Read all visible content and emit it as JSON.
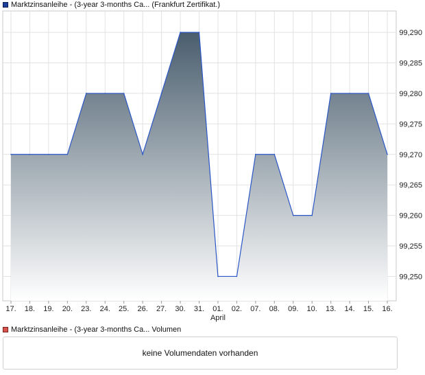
{
  "legend": {
    "price_series_label": "Marktzinsanleihe - (3-year 3-months Ca... (Frankfurt Zertifikat.)",
    "volume_series_label": "Marktzinsanleihe - (3-year 3-months Ca... Volumen",
    "price_color": "#1c3f9a",
    "volume_color": "#d9534f"
  },
  "volume_panel": {
    "message": "keine Volumendaten vorhanden"
  },
  "chart_data": {
    "type": "area",
    "x": [
      "17.",
      "18.",
      "19.",
      "20.",
      "23.",
      "24.",
      "25.",
      "26.",
      "27.",
      "30.",
      "31.",
      "01.",
      "02.",
      "07.",
      "08.",
      "09.",
      "10.",
      "13.",
      "14.",
      "15.",
      "16."
    ],
    "month_labels": [
      {
        "index": 11,
        "label": "April"
      }
    ],
    "series": [
      {
        "values": [
          99.27,
          99.27,
          99.27,
          99.27,
          99.28,
          99.28,
          99.28,
          99.27,
          99.28,
          99.29,
          99.29,
          99.25,
          99.25,
          99.27,
          99.27,
          99.26,
          99.26,
          99.28,
          99.28,
          99.28,
          99.27
        ]
      }
    ],
    "y_ticks": [
      "99,250",
      "99,255",
      "99,260",
      "99,265",
      "99,270",
      "99,275",
      "99,280",
      "99,285",
      "99,290"
    ],
    "ylim": [
      99.246,
      99.2935
    ],
    "y_axis_position": "right",
    "grid": true,
    "line_color": "#2a56c6",
    "fill_top_color": "#4a5e6e",
    "fill_bottom_color": "#ffffff",
    "title": "",
    "xlabel": "",
    "ylabel": ""
  }
}
